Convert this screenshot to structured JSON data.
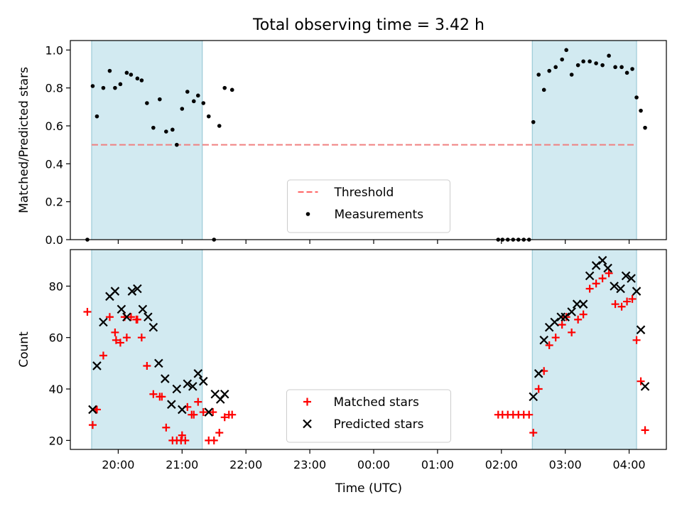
{
  "figure": {
    "title": "Total observing time = 3.42 h",
    "xlabel": "Time (UTC)"
  },
  "chart_data": [
    {
      "type": "scatter",
      "ylabel": "Matched/Predicted stars",
      "xlim": [
        "19:15",
        "04:35"
      ],
      "ylim": [
        0,
        1.05
      ],
      "yticks": [
        0.0,
        0.2,
        0.4,
        0.6,
        0.8,
        1.0
      ],
      "ytick_labels": [
        "0.0",
        "0.2",
        "0.4",
        "0.6",
        "0.8",
        "1.0"
      ],
      "xticks": [
        "20:00",
        "21:00",
        "22:00",
        "23:00",
        "00:00",
        "01:00",
        "02:00",
        "03:00",
        "04:00"
      ],
      "shaded_intervals": [
        [
          "19:35",
          "21:19"
        ],
        [
          "02:29",
          "04:07"
        ]
      ],
      "shade_color": "#add8e6",
      "legend": {
        "placement": "lower center",
        "entries": [
          {
            "label": "Threshold",
            "style": "dashed-line",
            "color": "#ff6666"
          },
          {
            "label": "Measurements",
            "style": "dot",
            "color": "#000000"
          }
        ]
      },
      "threshold": {
        "name": "Threshold",
        "value": 0.5,
        "x_range": [
          "19:35",
          "04:07"
        ],
        "color": "#f08080"
      },
      "series": [
        {
          "name": "Measurements",
          "marker": "dot",
          "color": "#000000",
          "x": [
            "19:31",
            "19:36",
            "19:40",
            "19:46",
            "19:52",
            "19:57",
            "20:02",
            "20:08",
            "20:12",
            "20:18",
            "20:22",
            "20:27",
            "20:33",
            "20:39",
            "20:45",
            "20:51",
            "20:55",
            "21:00",
            "21:05",
            "21:11",
            "21:15",
            "21:20",
            "21:25",
            "21:30",
            "21:35",
            "21:40",
            "21:47",
            "01:57",
            "02:01",
            "02:06",
            "02:11",
            "02:16",
            "02:21",
            "02:26",
            "02:30",
            "02:35",
            "02:40",
            "02:45",
            "02:51",
            "02:57",
            "03:01",
            "03:06",
            "03:12",
            "03:17",
            "03:23",
            "03:29",
            "03:35",
            "03:41",
            "03:47",
            "03:53",
            "03:58",
            "04:03",
            "04:07",
            "04:11",
            "04:15"
          ],
          "y": [
            0.0,
            0.81,
            0.65,
            0.8,
            0.89,
            0.8,
            0.82,
            0.88,
            0.87,
            0.85,
            0.84,
            0.72,
            0.59,
            0.74,
            0.57,
            0.58,
            0.5,
            0.69,
            0.78,
            0.73,
            0.76,
            0.72,
            0.65,
            0.0,
            0.6,
            0.8,
            0.79,
            0.0,
            0.0,
            0.0,
            0.0,
            0.0,
            0.0,
            0.0,
            0.62,
            0.87,
            0.79,
            0.89,
            0.91,
            0.95,
            1.0,
            0.87,
            0.92,
            0.94,
            0.94,
            0.93,
            0.92,
            0.97,
            0.91,
            0.91,
            0.88,
            0.9,
            0.75,
            0.68,
            0.59
          ]
        }
      ]
    },
    {
      "type": "scatter",
      "ylabel": "Count",
      "xlim": [
        "19:15",
        "04:35"
      ],
      "ylim": [
        16.5,
        94.2
      ],
      "yticks": [
        20,
        40,
        60,
        80
      ],
      "ytick_labels": [
        "20",
        "40",
        "60",
        "80"
      ],
      "xticks": [
        "20:00",
        "21:00",
        "22:00",
        "23:00",
        "00:00",
        "01:00",
        "02:00",
        "03:00",
        "04:00"
      ],
      "xtick_labels": [
        "20:00",
        "21:00",
        "22:00",
        "23:00",
        "00:00",
        "01:00",
        "02:00",
        "03:00",
        "04:00"
      ],
      "shaded_intervals": [
        [
          "19:35",
          "21:19"
        ],
        [
          "02:29",
          "04:07"
        ]
      ],
      "shade_color": "#add8e6",
      "legend": {
        "placement": "lower center",
        "entries": [
          {
            "label": "Matched stars",
            "style": "plus",
            "color": "#ff0000"
          },
          {
            "label": "Predicted stars",
            "style": "x",
            "color": "#000000"
          }
        ]
      },
      "series": [
        {
          "name": "Matched stars",
          "marker": "plus",
          "color": "#ff0000",
          "x": [
            "19:31",
            "19:36",
            "19:40",
            "19:46",
            "19:52",
            "19:57",
            "20:02",
            "20:08",
            "20:12",
            "20:18",
            "20:22",
            "20:27",
            "20:33",
            "20:39",
            "20:45",
            "20:51",
            "20:55",
            "21:00",
            "21:05",
            "21:11",
            "21:15",
            "21:20",
            "21:25",
            "21:30",
            "21:35",
            "21:40",
            "21:47",
            "01:57",
            "02:01",
            "02:06",
            "02:11",
            "02:16",
            "02:21",
            "02:26",
            "02:30",
            "02:35",
            "02:40",
            "02:45",
            "02:51",
            "02:57",
            "03:01",
            "03:06",
            "03:12",
            "03:17",
            "03:23",
            "03:29",
            "03:35",
            "03:41",
            "03:47",
            "03:53",
            "03:58",
            "04:03",
            "04:07",
            "04:11",
            "04:15",
            "19:39",
            "19:58",
            "20:06",
            "20:17",
            "20:41",
            "20:59",
            "21:03",
            "21:09",
            "21:29",
            "21:44"
          ],
          "y": [
            70,
            26,
            32,
            53,
            68,
            62,
            58,
            60,
            68,
            67,
            60,
            49,
            38,
            37,
            25,
            20,
            20,
            22,
            33,
            30,
            35,
            31,
            20,
            20,
            23,
            29,
            30,
            30,
            30,
            30,
            30,
            30,
            30,
            30,
            23,
            40,
            47,
            57,
            60,
            65,
            68,
            62,
            67,
            69,
            79,
            81,
            83,
            85,
            73,
            72,
            74,
            75,
            59,
            43,
            24,
            32,
            59,
            68,
            67,
            37,
            20,
            20,
            30,
            31,
            30
          ]
        },
        {
          "name": "Predicted stars",
          "marker": "x",
          "color": "#000000",
          "x": [
            "19:36",
            "19:40",
            "19:46",
            "19:52",
            "19:57",
            "20:03",
            "20:08",
            "20:13",
            "20:18",
            "20:23",
            "20:28",
            "20:33",
            "20:38",
            "20:44",
            "20:50",
            "20:55",
            "21:00",
            "21:05",
            "21:10",
            "21:15",
            "21:20",
            "21:25",
            "21:31",
            "21:36",
            "21:40",
            "02:30",
            "02:35",
            "02:40",
            "02:45",
            "02:50",
            "02:56",
            "03:00",
            "03:06",
            "03:11",
            "03:17",
            "03:23",
            "03:29",
            "03:35",
            "03:40",
            "03:46",
            "03:52",
            "03:57",
            "04:02",
            "04:07",
            "04:11",
            "04:15"
          ],
          "y": [
            32,
            49,
            66,
            76,
            78,
            71,
            68,
            78,
            79,
            71,
            68,
            64,
            50,
            44,
            34,
            40,
            32,
            42,
            41,
            46,
            43,
            31,
            38,
            36,
            38,
            37,
            46,
            59,
            64,
            66,
            68,
            68,
            70,
            73,
            73,
            84,
            88,
            90,
            87,
            80,
            79,
            84,
            83,
            78,
            63,
            41
          ]
        }
      ]
    }
  ]
}
